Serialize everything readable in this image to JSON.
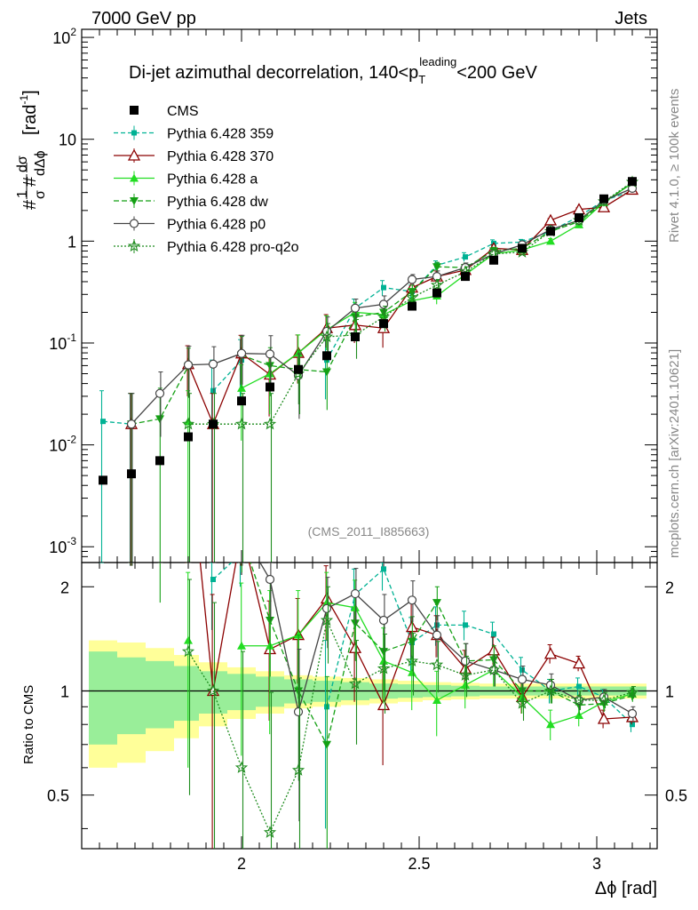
{
  "header": {
    "left": "7000 GeV pp",
    "right": "Jets"
  },
  "side_labels": {
    "rivet": "Rivet 4.1.0, ≥ 100k events",
    "mcplots": "mcplots.cern.ch [arXiv:2401.10621]"
  },
  "chart_data": {
    "type": "line",
    "title": "Di-jet azimuthal decorrelation, 140<p_T^leading<200 GeV",
    "title_parts": {
      "pre": "Di-jet azimuthal decorrelation, 140<p",
      "sub": "T",
      "sup": "leading",
      "post": "<200 GeV"
    },
    "analysis_id": "(CMS_2011_I885663)",
    "xlabel": "Δϕ [rad]",
    "ylabel_main": "#1/σ #dσ/dΔϕ [rad⁻¹]",
    "ylabel_parts": {
      "hash": "#",
      "num1": "1",
      "den1": "σ",
      "num2": "dσ",
      "den2": "dΔϕ",
      "unit": "[rad",
      "unit_sup": "-1",
      "unit_close": "]"
    },
    "ylabel_ratio": "Ratio to CMS",
    "xlim": [
      1.55,
      3.17
    ],
    "ylim_main": [
      0.0007,
      120
    ],
    "ylim_ratio": [
      0.35,
      2.35
    ],
    "x_ticks": [
      2,
      2.5,
      3
    ],
    "x_tick_labels": [
      "2",
      "2.5",
      "3"
    ],
    "y_ticks_main": [
      0.001,
      0.01,
      0.1,
      1,
      10,
      100
    ],
    "y_tick_labels_main": [
      "10⁻³",
      "10⁻²",
      "10⁻¹",
      "1",
      "10",
      "10²"
    ],
    "y_tick_main_parts": [
      [
        "10",
        "-3"
      ],
      [
        "10",
        "-2"
      ],
      [
        "10",
        "-1"
      ],
      [
        "1",
        ""
      ],
      [
        "10",
        ""
      ],
      [
        "10",
        "2"
      ]
    ],
    "y_ticks_ratio": [
      0.5,
      1,
      2
    ],
    "y_tick_labels_ratio": [
      "0.5",
      "1",
      "2"
    ],
    "x": [
      1.61,
      1.69,
      1.77,
      1.85,
      1.92,
      2.0,
      2.08,
      2.16,
      2.24,
      2.32,
      2.4,
      2.48,
      2.55,
      2.63,
      2.71,
      2.79,
      2.87,
      2.95,
      3.02,
      3.1
    ],
    "bin_edges": [
      1.57,
      1.65,
      1.73,
      1.81,
      1.88,
      1.96,
      2.04,
      2.12,
      2.2,
      2.28,
      2.36,
      2.44,
      2.51,
      2.59,
      2.67,
      2.75,
      2.83,
      2.91,
      2.98,
      3.06,
      3.14
    ],
    "data": {
      "name": "CMS",
      "values": [
        0.0045,
        0.0052,
        0.007,
        0.012,
        0.016,
        0.027,
        0.037,
        0.055,
        0.075,
        0.115,
        0.155,
        0.23,
        0.31,
        0.45,
        0.65,
        0.85,
        1.25,
        1.7,
        2.6,
        3.85
      ],
      "band_inner": [
        0.3,
        0.25,
        0.22,
        0.18,
        0.14,
        0.12,
        0.1,
        0.08,
        0.07,
        0.06,
        0.05,
        0.045,
        0.04,
        0.035,
        0.03,
        0.03,
        0.03,
        0.03,
        0.03,
        0.03
      ],
      "band_outer": [
        0.4,
        0.38,
        0.33,
        0.27,
        0.21,
        0.17,
        0.14,
        0.11,
        0.1,
        0.09,
        0.08,
        0.07,
        0.06,
        0.055,
        0.05,
        0.05,
        0.05,
        0.05,
        0.05,
        0.05
      ]
    },
    "series": [
      {
        "name": "Pythia 6.428 359",
        "color": "#00b294",
        "dash": "5,3",
        "marker": "smallsquare",
        "values": [
          0.017,
          0.016,
          null,
          null,
          0.034,
          0.068,
          null,
          null,
          0.068,
          0.22,
          0.35,
          0.32,
          0.58,
          0.7,
          0.95,
          0.98,
          1.25,
          1.75,
          2.5,
          3.1
        ],
        "errors": [
          0.017,
          0.016,
          null,
          null,
          0.034,
          0.04,
          null,
          null,
          0.04,
          0.05,
          0.06,
          0.05,
          0.06,
          0.07,
          0.08,
          0.06,
          0.06,
          0.07,
          0.08,
          0.09
        ],
        "ratio": [
          3.8,
          3.1,
          null,
          null,
          2.1,
          2.5,
          null,
          null,
          0.9,
          1.9,
          2.25,
          1.38,
          1.55,
          1.55,
          1.46,
          1.15,
          1.0,
          1.03,
          0.96,
          0.8
        ],
        "ratio_err": [
          0.8,
          0.8,
          null,
          null,
          0.6,
          0.5,
          null,
          null,
          0.5,
          0.35,
          0.3,
          0.25,
          0.2,
          0.15,
          0.12,
          0.1,
          0.08,
          0.06,
          0.05,
          0.04
        ]
      },
      {
        "name": "Pythia 6.428 370",
        "color": "#8b0000",
        "dash": "",
        "marker": "opentriangle",
        "values": [
          null,
          0.016,
          null,
          0.062,
          0.016,
          0.079,
          0.049,
          0.08,
          0.14,
          0.15,
          0.14,
          0.35,
          0.45,
          0.52,
          0.85,
          0.82,
          1.6,
          2.05,
          2.15,
          3.2
        ],
        "errors": [
          null,
          0.016,
          null,
          0.032,
          0.016,
          0.04,
          0.03,
          0.04,
          0.05,
          0.05,
          0.05,
          0.05,
          0.06,
          0.06,
          0.07,
          0.06,
          0.07,
          0.08,
          0.08,
          0.09
        ],
        "ratio": [
          null,
          3.1,
          null,
          5.2,
          1.0,
          2.9,
          1.32,
          1.45,
          1.85,
          1.33,
          0.91,
          1.53,
          1.45,
          1.16,
          1.31,
          0.96,
          1.28,
          1.2,
          0.83,
          0.84
        ],
        "ratio_err": [
          null,
          0.8,
          null,
          0.8,
          0.9,
          0.6,
          0.5,
          0.4,
          0.45,
          0.4,
          0.3,
          0.3,
          0.2,
          0.15,
          0.12,
          0.1,
          0.08,
          0.06,
          0.05,
          0.04
        ]
      },
      {
        "name": "Pythia 6.428 a",
        "color": "#22dd22",
        "dash": "",
        "marker": "triangle",
        "values": [
          null,
          null,
          null,
          0.017,
          null,
          0.036,
          0.05,
          0.08,
          0.135,
          0.2,
          0.19,
          0.26,
          0.29,
          0.47,
          0.75,
          0.82,
          1.0,
          1.45,
          2.4,
          3.7
        ],
        "errors": [
          null,
          null,
          null,
          0.017,
          null,
          0.025,
          0.03,
          0.04,
          0.05,
          0.05,
          0.05,
          0.05,
          0.05,
          0.06,
          0.07,
          0.06,
          0.06,
          0.07,
          0.08,
          0.09
        ],
        "ratio": [
          null,
          null,
          null,
          1.4,
          null,
          1.35,
          1.35,
          1.45,
          1.8,
          1.74,
          1.22,
          1.13,
          0.94,
          1.04,
          1.15,
          0.96,
          0.8,
          0.85,
          0.93,
          0.98
        ],
        "ratio_err": [
          null,
          null,
          null,
          0.8,
          null,
          0.7,
          0.6,
          0.5,
          0.4,
          0.35,
          0.3,
          0.25,
          0.2,
          0.15,
          0.12,
          0.1,
          0.08,
          0.06,
          0.05,
          0.04
        ]
      },
      {
        "name": "Pythia 6.428 dw",
        "color": "#14a014",
        "dash": "6,3",
        "marker": "invtriangle",
        "values": [
          null,
          0.016,
          0.018,
          0.059,
          null,
          0.076,
          0.06,
          0.055,
          0.052,
          0.18,
          0.2,
          0.32,
          0.56,
          0.55,
          0.8,
          0.85,
          1.25,
          1.55,
          2.4,
          3.75
        ],
        "errors": [
          null,
          0.016,
          0.018,
          0.03,
          null,
          0.04,
          0.03,
          0.03,
          0.03,
          0.05,
          0.05,
          0.05,
          0.06,
          0.06,
          0.07,
          0.06,
          0.06,
          0.07,
          0.08,
          0.09
        ],
        "ratio": [
          null,
          3.1,
          2.6,
          4.9,
          null,
          2.8,
          1.6,
          1.0,
          0.7,
          1.57,
          1.3,
          1.39,
          1.8,
          1.22,
          1.23,
          1.0,
          1.0,
          0.91,
          0.92,
          0.97
        ],
        "ratio_err": [
          null,
          0.8,
          0.8,
          0.8,
          null,
          0.6,
          0.5,
          0.45,
          0.4,
          0.35,
          0.3,
          0.25,
          0.2,
          0.15,
          0.12,
          0.1,
          0.08,
          0.06,
          0.05,
          0.04
        ]
      },
      {
        "name": "Pythia 6.428 p0",
        "color": "#444444",
        "dash": "",
        "marker": "opencircle",
        "values": [
          null,
          0.016,
          0.032,
          0.061,
          0.062,
          0.079,
          0.078,
          0.048,
          0.13,
          0.22,
          0.24,
          0.42,
          0.45,
          0.55,
          0.75,
          0.92,
          1.3,
          1.6,
          2.5,
          3.3
        ],
        "errors": [
          null,
          0.016,
          0.02,
          0.032,
          0.03,
          0.04,
          0.04,
          0.03,
          0.05,
          0.05,
          0.05,
          0.05,
          0.06,
          0.06,
          0.07,
          0.06,
          0.06,
          0.07,
          0.08,
          0.09
        ],
        "ratio": [
          null,
          3.1,
          4.6,
          5.1,
          3.9,
          2.9,
          2.1,
          0.87,
          1.73,
          1.91,
          1.6,
          1.83,
          1.45,
          1.22,
          1.15,
          1.08,
          1.04,
          0.94,
          0.96,
          0.86
        ],
        "ratio_err": [
          null,
          0.8,
          0.8,
          0.8,
          0.7,
          0.6,
          0.5,
          0.45,
          0.4,
          0.35,
          0.3,
          0.25,
          0.2,
          0.15,
          0.12,
          0.1,
          0.08,
          0.06,
          0.05,
          0.04
        ]
      },
      {
        "name": "Pythia 6.428 pro-q2o",
        "color": "#1f8c1f",
        "dash": "2,2",
        "marker": "star",
        "values": [
          null,
          null,
          null,
          0.016,
          0.016,
          0.016,
          0.016,
          0.05,
          0.115,
          0.12,
          0.18,
          0.28,
          0.37,
          0.5,
          0.75,
          0.78,
          1.25,
          1.6,
          2.45,
          3.8
        ],
        "errors": [
          null,
          null,
          null,
          0.016,
          0.016,
          0.016,
          0.016,
          0.03,
          0.04,
          0.05,
          0.05,
          0.05,
          0.05,
          0.06,
          0.07,
          0.06,
          0.06,
          0.07,
          0.08,
          0.09
        ],
        "ratio": [
          null,
          null,
          null,
          1.3,
          1.0,
          0.6,
          0.39,
          0.59,
          1.6,
          1.05,
          1.16,
          1.22,
          1.19,
          1.11,
          1.15,
          0.92,
          1.0,
          0.94,
          0.94,
          0.99
        ],
        "ratio_err": [
          null,
          null,
          null,
          0.8,
          0.8,
          0.7,
          0.6,
          0.5,
          0.4,
          0.35,
          0.3,
          0.25,
          0.2,
          0.15,
          0.12,
          0.1,
          0.08,
          0.06,
          0.05,
          0.04
        ]
      }
    ]
  }
}
